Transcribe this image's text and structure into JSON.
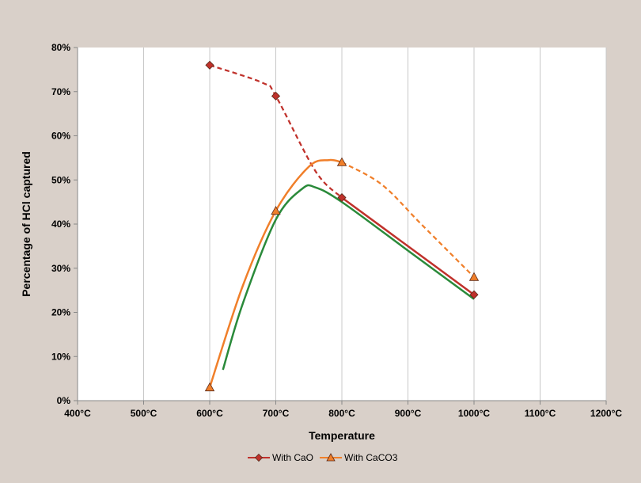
{
  "chart_data": {
    "type": "scatter",
    "title": "",
    "xlabel": "Temperature",
    "ylabel": "Percentage of HCl captured",
    "xlim": [
      400,
      1200
    ],
    "ylim": [
      0,
      80
    ],
    "x_ticks": [
      400,
      500,
      600,
      700,
      800,
      900,
      1000,
      1100,
      1200
    ],
    "x_tick_labels": [
      "400°C",
      "500°C",
      "600°C",
      "700°C",
      "800°C",
      "900°C",
      "1000°C",
      "1100°C",
      "1200°C"
    ],
    "y_ticks": [
      0,
      10,
      20,
      30,
      40,
      50,
      60,
      70,
      80
    ],
    "y_tick_labels": [
      "0%",
      "10%",
      "20%",
      "30%",
      "40%",
      "50%",
      "60%",
      "70%",
      "80%"
    ],
    "grid": "vertical",
    "legend_position": "bottom",
    "series": [
      {
        "name": "With CaO",
        "color": "#c0312b",
        "marker": "diamond",
        "x": [
          600,
          700,
          800,
          1000
        ],
        "y": [
          76,
          69,
          46,
          24
        ]
      },
      {
        "name": "With CaCO3",
        "color": "#f07f2a",
        "marker": "triangle",
        "x": [
          600,
          700,
          800,
          1000
        ],
        "y": [
          3,
          43,
          54,
          28
        ]
      }
    ],
    "trend_curves": [
      {
        "color": "#c0312b",
        "style": "dashed",
        "x": [
          600,
          680,
          700,
          760,
          800
        ],
        "y": [
          76,
          72,
          69,
          52,
          46
        ]
      },
      {
        "color": "#c0312b",
        "style": "solid",
        "x": [
          800,
          900,
          1000
        ],
        "y": [
          46,
          35,
          24
        ]
      },
      {
        "color": "#f07f2a",
        "style": "solid",
        "x": [
          600,
          650,
          700,
          750,
          780,
          800
        ],
        "y": [
          3,
          26,
          43,
          53,
          54.5,
          54
        ]
      },
      {
        "color": "#f07f2a",
        "style": "dashed",
        "x": [
          800,
          860,
          920,
          1000
        ],
        "y": [
          54,
          49,
          40,
          28
        ]
      },
      {
        "color": "#2a8a3a",
        "style": "solid",
        "x": [
          620,
          650,
          700,
          740,
          760,
          800,
          900,
          1000
        ],
        "y": [
          7,
          22,
          41,
          48,
          48.3,
          45,
          34,
          23
        ]
      }
    ]
  }
}
